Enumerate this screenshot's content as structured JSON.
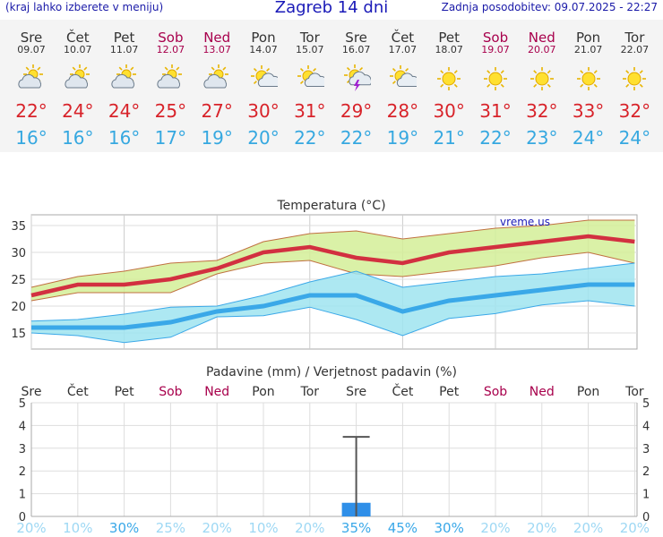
{
  "header": {
    "left_note": "(kraj lahko izberete v meniju)",
    "title": "Zagreb 14 dni",
    "updated": "Zadnja posodobitev: 09.07.2025 - 22:27"
  },
  "days": [
    {
      "name": "Sre",
      "date": "09.07",
      "weekend": false,
      "icon": "partly-cloudy-icon",
      "max": "22°",
      "min": "16°"
    },
    {
      "name": "Čet",
      "date": "10.07",
      "weekend": false,
      "icon": "partly-cloudy-icon",
      "max": "24°",
      "min": "16°"
    },
    {
      "name": "Pet",
      "date": "11.07",
      "weekend": false,
      "icon": "partly-cloudy-icon",
      "max": "24°",
      "min": "16°"
    },
    {
      "name": "Sob",
      "date": "12.07",
      "weekend": true,
      "icon": "partly-cloudy-icon",
      "max": "25°",
      "min": "17°"
    },
    {
      "name": "Ned",
      "date": "13.07",
      "weekend": true,
      "icon": "partly-cloudy-icon",
      "max": "27°",
      "min": "19°"
    },
    {
      "name": "Pon",
      "date": "14.07",
      "weekend": false,
      "icon": "sun-cloud-icon",
      "max": "30°",
      "min": "20°"
    },
    {
      "name": "Tor",
      "date": "15.07",
      "weekend": false,
      "icon": "sun-cloud-icon",
      "max": "31°",
      "min": "22°"
    },
    {
      "name": "Sre",
      "date": "16.07",
      "weekend": false,
      "icon": "thunderstorm-icon",
      "max": "29°",
      "min": "22°"
    },
    {
      "name": "Čet",
      "date": "17.07",
      "weekend": false,
      "icon": "sun-cloud-icon",
      "max": "28°",
      "min": "19°"
    },
    {
      "name": "Pet",
      "date": "18.07",
      "weekend": false,
      "icon": "sun-icon",
      "max": "30°",
      "min": "21°"
    },
    {
      "name": "Sob",
      "date": "19.07",
      "weekend": true,
      "icon": "sun-icon",
      "max": "31°",
      "min": "22°"
    },
    {
      "name": "Ned",
      "date": "20.07",
      "weekend": true,
      "icon": "sun-icon",
      "max": "32°",
      "min": "23°"
    },
    {
      "name": "Pon",
      "date": "21.07",
      "weekend": false,
      "icon": "sun-icon",
      "max": "33°",
      "min": "24°"
    },
    {
      "name": "Tor",
      "date": "22.07",
      "weekend": false,
      "icon": "sun-icon",
      "max": "32°",
      "min": "24°"
    }
  ],
  "colors": {
    "max": "#d8232a",
    "min": "#36a8e0",
    "weekend": "#a8004c",
    "hot_band": "#d4ee98",
    "cool_band": "#9fe4f0",
    "bar": "#2f8fe8"
  },
  "chart_data": [
    {
      "type": "line",
      "title": "Temperatura (°C)",
      "watermark": "vreme.us",
      "categories": [
        "Sre",
        "Čet",
        "Pet",
        "Sob",
        "Ned",
        "Pon",
        "Tor",
        "Sre",
        "Čet",
        "Pet",
        "Sob",
        "Ned",
        "Pon",
        "Tor"
      ],
      "ylim": [
        12,
        37
      ],
      "yticks": [
        "15",
        "20",
        "25",
        "30",
        "35"
      ],
      "series": [
        {
          "role": "max",
          "values": [
            22,
            24,
            24,
            25,
            27,
            30,
            31,
            29,
            28,
            30,
            31,
            32,
            33,
            32
          ]
        },
        {
          "role": "max-upper",
          "values": [
            23.5,
            25.5,
            26.5,
            28,
            28.5,
            32,
            33.5,
            34,
            32.5,
            33.5,
            34.5,
            35,
            36,
            36
          ]
        },
        {
          "role": "max-lower",
          "values": [
            21,
            22.5,
            22.5,
            22.5,
            26,
            28,
            28.5,
            26,
            25.5,
            26.5,
            27.5,
            29,
            30,
            28
          ]
        },
        {
          "role": "min",
          "values": [
            16,
            16,
            16,
            17,
            19,
            20,
            22,
            22,
            19,
            21,
            22,
            23,
            24,
            24
          ]
        },
        {
          "role": "min-upper",
          "values": [
            17.2,
            17.5,
            18.5,
            19.8,
            20,
            22,
            24.5,
            26.5,
            23.5,
            24.5,
            25.5,
            26,
            27,
            28
          ]
        },
        {
          "role": "min-lower",
          "values": [
            15,
            14.5,
            13.2,
            14.2,
            18,
            18.2,
            19.8,
            17.5,
            14.5,
            17.7,
            18.6,
            20.2,
            21,
            20
          ]
        }
      ]
    },
    {
      "type": "bar",
      "title": "Padavine (mm) / Verjetnost padavin (%)",
      "categories": [
        "Sre",
        "Čet",
        "Pet",
        "Sob",
        "Ned",
        "Pon",
        "Tor",
        "Sre",
        "Čet",
        "Pet",
        "Sob",
        "Ned",
        "Pon",
        "Tor"
      ],
      "ylim": [
        0,
        5
      ],
      "yticks": [
        "0",
        "1",
        "2",
        "3",
        "4",
        "5"
      ],
      "values": [
        0,
        0,
        0,
        0,
        0,
        0,
        0,
        0.6,
        0,
        0,
        0,
        0,
        0,
        0
      ],
      "error_high": [
        0,
        0,
        0,
        0,
        0,
        0,
        0,
        3.5,
        0,
        0,
        0,
        0,
        0,
        0
      ],
      "probabilities": [
        "20%",
        "10%",
        "30%",
        "25%",
        "20%",
        "10%",
        "20%",
        "35%",
        "45%",
        "30%",
        "20%",
        "20%",
        "20%",
        "20%"
      ],
      "probability_values": [
        20,
        10,
        30,
        25,
        20,
        10,
        20,
        35,
        45,
        30,
        20,
        20,
        20,
        20
      ]
    }
  ]
}
